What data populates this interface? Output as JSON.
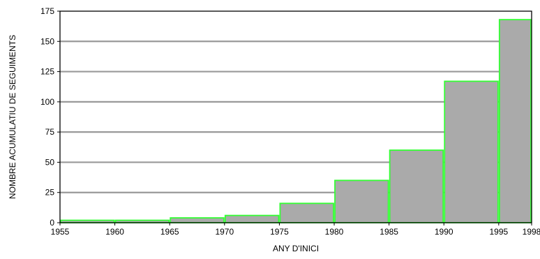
{
  "chart_data": {
    "type": "bar",
    "xlabel": "ANY D'INICI",
    "ylabel": "NOMBRE ACUMULATIU DE SEGUIMENTS",
    "xlim": [
      1955,
      1998
    ],
    "ylim": [
      0,
      175
    ],
    "x_ticks": [
      1955,
      1960,
      1965,
      1970,
      1975,
      1980,
      1985,
      1990,
      1995,
      1998
    ],
    "y_ticks": [
      0,
      25,
      50,
      75,
      100,
      125,
      150,
      175
    ],
    "grid": "horizontal",
    "bars": [
      {
        "start": 1955,
        "end": 1960,
        "value": 2
      },
      {
        "start": 1960,
        "end": 1965,
        "value": 2
      },
      {
        "start": 1965,
        "end": 1970,
        "value": 4
      },
      {
        "start": 1970,
        "end": 1975,
        "value": 6
      },
      {
        "start": 1975,
        "end": 1980,
        "value": 16
      },
      {
        "start": 1980,
        "end": 1985,
        "value": 35
      },
      {
        "start": 1985,
        "end": 1990,
        "value": 60
      },
      {
        "start": 1990,
        "end": 1995,
        "value": 117
      },
      {
        "start": 1995,
        "end": 1998,
        "value": 168
      }
    ],
    "colors": {
      "bar_fill": "#aaaaaa",
      "bar_stroke": "#33ff33",
      "grid": "#999999"
    }
  }
}
